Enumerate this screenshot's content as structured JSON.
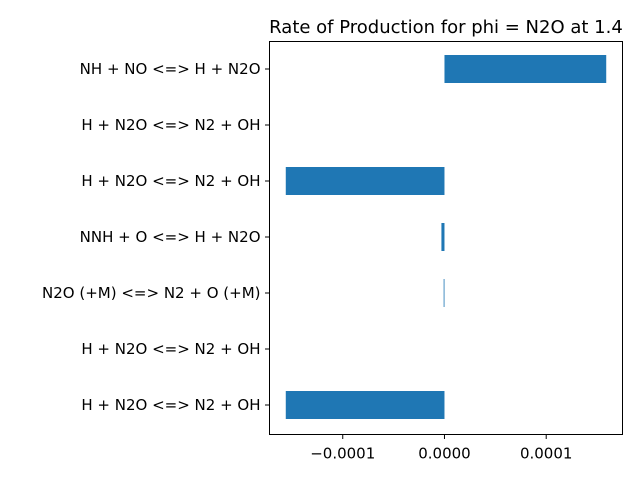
{
  "chart_data": {
    "type": "bar",
    "orientation": "horizontal",
    "title": "Rate of Production for phi = N2O at 1.4",
    "xlabel": "",
    "ylabel": "",
    "categories": [
      "NH + NO <=> H + N2O",
      "H + N2O <=> N2 + OH",
      "H + N2O <=> N2 + OH",
      "NNH + O <=> H + N2O",
      "N2O (+M) <=> N2 + O (+M)",
      "H + N2O <=> N2 + OH",
      "H + N2O <=> N2 + OH"
    ],
    "values": [
      0.000159,
      0.0,
      -0.000156,
      -3e-06,
      -8e-07,
      0.0,
      -0.000156
    ],
    "xlim": [
      -0.000172,
      0.000175
    ],
    "xticks": [
      -0.0001,
      0.0,
      0.0001
    ],
    "xtick_labels": [
      "−0.0001",
      "0.0000",
      "0.0001"
    ],
    "bar_color": "#1f77b4",
    "grid": false,
    "legend": "none"
  }
}
